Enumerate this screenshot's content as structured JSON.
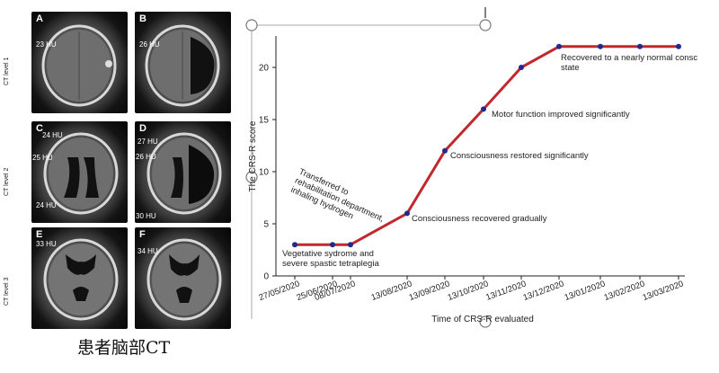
{
  "ct_panel": {
    "row_labels": [
      "CT level 1",
      "CT level 2",
      "CT level 3"
    ],
    "tiles": [
      {
        "letter": "A",
        "hu": [
          "23 HU"
        ]
      },
      {
        "letter": "B",
        "hu": [
          "26 HU"
        ]
      },
      {
        "letter": "C",
        "hu": [
          "24 HU",
          "25 HU",
          "24 HU"
        ]
      },
      {
        "letter": "D",
        "hu": [
          "27 HU",
          "26 HU",
          "30 HU"
        ]
      },
      {
        "letter": "E",
        "hu": [
          "33 HU"
        ]
      },
      {
        "letter": "F",
        "hu": [
          "34 HU"
        ]
      }
    ],
    "caption": "患者脑部CT"
  },
  "chart_data": {
    "type": "line",
    "xlabel": "Time of CRS-R evaluated",
    "ylabel": "The CRS-R score",
    "ylim": [
      0,
      23
    ],
    "yticks": [
      0,
      5,
      10,
      15,
      20
    ],
    "x_ticks": [
      "27/05/2020",
      "25/06/2020",
      "08/07/2020",
      "13/08/2020",
      "13/09/2020",
      "13/10/2020",
      "13/11/2020",
      "13/12/2020",
      "13/01/2020",
      "13/02/2020",
      "13/03/2020"
    ],
    "series": [
      {
        "color": "#c0282d",
        "marker_color": "#1f2a8c",
        "points": [
          {
            "x": "27/05/2020",
            "y": 3
          },
          {
            "x": "25/06/2020",
            "y": 3
          },
          {
            "x": "08/07/2020",
            "y": 3
          },
          {
            "x": "13/08/2020",
            "y": 6
          },
          {
            "x": "13/09/2020",
            "y": 12
          },
          {
            "x": "13/10/2020",
            "y": 16
          },
          {
            "x": "13/11/2020",
            "y": 20
          },
          {
            "x": "13/12/2020",
            "y": 22
          },
          {
            "x": "13/01/2020",
            "y": 22
          },
          {
            "x": "13/02/2020",
            "y": 22
          },
          {
            "x": "13/03/2020",
            "y": 22
          }
        ]
      }
    ],
    "annotations": [
      {
        "text": [
          "Vegetative sydrome and",
          "severe spastic tetraplegia"
        ]
      },
      {
        "text": [
          "Transferred to",
          "rehabilitation department,",
          "inhaling hydrogen"
        ]
      },
      {
        "text": [
          "Consciousness recovered gradually"
        ]
      },
      {
        "text": [
          "Consciousness restored significantly"
        ]
      },
      {
        "text": [
          "Motor function improved significantly"
        ]
      },
      {
        "text": [
          "Recovered to a nearly normal consc",
          "state"
        ]
      }
    ]
  }
}
